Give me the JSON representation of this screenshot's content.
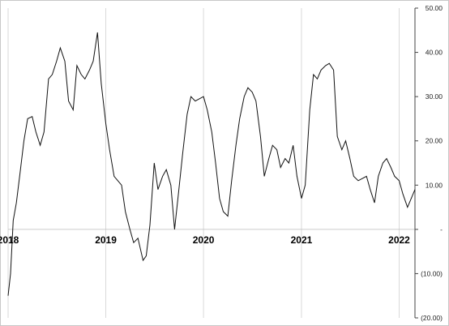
{
  "chart_data": {
    "type": "line",
    "title": "",
    "xlabel": "",
    "ylabel": "",
    "x_tick_labels": [
      "2018",
      "2019",
      "2020",
      "2021",
      "2022"
    ],
    "y_tick_labels": [
      "50.00",
      "40.00",
      "30.00",
      "20.00",
      "10.00",
      "-",
      "(10.00)",
      "(20.00)"
    ],
    "y_tick_values": [
      50,
      40,
      30,
      20,
      10,
      0,
      -10,
      -20
    ],
    "ylim": [
      -20,
      50
    ],
    "xlim": [
      "2018-01-01",
      "2022-03-01"
    ],
    "grid": "vertical",
    "colors": {
      "line": "#111111",
      "grid": "#d9d9d9",
      "zero_line": "#bbbbbb",
      "axis": "#444444"
    },
    "series": [
      {
        "points": [
          [
            "2018-01-01",
            -15
          ],
          [
            "2018-01-10",
            -10
          ],
          [
            "2018-01-20",
            2
          ],
          [
            "2018-02-01",
            6
          ],
          [
            "2018-02-15",
            13
          ],
          [
            "2018-03-01",
            20
          ],
          [
            "2018-03-15",
            25
          ],
          [
            "2018-04-01",
            25.5
          ],
          [
            "2018-04-15",
            22
          ],
          [
            "2018-05-01",
            19
          ],
          [
            "2018-05-15",
            22
          ],
          [
            "2018-06-01",
            34
          ],
          [
            "2018-06-15",
            35
          ],
          [
            "2018-07-01",
            38
          ],
          [
            "2018-07-15",
            41
          ],
          [
            "2018-08-01",
            38
          ],
          [
            "2018-08-15",
            29
          ],
          [
            "2018-09-01",
            27
          ],
          [
            "2018-09-15",
            37
          ],
          [
            "2018-10-01",
            35
          ],
          [
            "2018-10-15",
            34
          ],
          [
            "2018-11-01",
            36
          ],
          [
            "2018-11-15",
            38
          ],
          [
            "2018-12-01",
            44.5
          ],
          [
            "2018-12-15",
            33
          ],
          [
            "2019-01-01",
            24
          ],
          [
            "2019-01-15",
            18
          ],
          [
            "2019-02-01",
            12
          ],
          [
            "2019-03-01",
            10
          ],
          [
            "2019-03-15",
            4
          ],
          [
            "2019-04-01",
            0
          ],
          [
            "2019-04-15",
            -3
          ],
          [
            "2019-05-01",
            -2
          ],
          [
            "2019-05-20",
            -7
          ],
          [
            "2019-06-01",
            -6
          ],
          [
            "2019-06-15",
            1
          ],
          [
            "2019-07-01",
            15
          ],
          [
            "2019-07-15",
            9
          ],
          [
            "2019-08-01",
            12
          ],
          [
            "2019-08-15",
            13.5
          ],
          [
            "2019-09-01",
            10
          ],
          [
            "2019-09-15",
            0
          ],
          [
            "2019-10-01",
            9
          ],
          [
            "2019-10-15",
            17
          ],
          [
            "2019-11-01",
            26
          ],
          [
            "2019-11-15",
            30
          ],
          [
            "2019-12-01",
            29
          ],
          [
            "2020-01-01",
            30
          ],
          [
            "2020-01-15",
            27
          ],
          [
            "2020-02-01",
            22
          ],
          [
            "2020-02-15",
            15
          ],
          [
            "2020-03-01",
            7
          ],
          [
            "2020-03-15",
            4
          ],
          [
            "2020-04-01",
            3
          ],
          [
            "2020-04-15",
            11
          ],
          [
            "2020-05-01",
            19
          ],
          [
            "2020-05-15",
            25
          ],
          [
            "2020-06-01",
            30
          ],
          [
            "2020-06-15",
            32
          ],
          [
            "2020-07-01",
            31
          ],
          [
            "2020-07-15",
            29
          ],
          [
            "2020-08-01",
            21
          ],
          [
            "2020-08-15",
            12
          ],
          [
            "2020-09-01",
            16
          ],
          [
            "2020-09-15",
            19
          ],
          [
            "2020-10-01",
            18
          ],
          [
            "2020-10-15",
            14
          ],
          [
            "2020-11-01",
            16
          ],
          [
            "2020-11-15",
            15
          ],
          [
            "2020-12-01",
            19
          ],
          [
            "2020-12-15",
            12
          ],
          [
            "2021-01-01",
            7
          ],
          [
            "2021-01-15",
            10
          ],
          [
            "2021-02-01",
            27
          ],
          [
            "2021-02-15",
            35
          ],
          [
            "2021-03-01",
            34
          ],
          [
            "2021-03-15",
            36
          ],
          [
            "2021-04-01",
            37
          ],
          [
            "2021-04-15",
            37.5
          ],
          [
            "2021-05-01",
            36
          ],
          [
            "2021-05-15",
            21
          ],
          [
            "2021-06-01",
            18
          ],
          [
            "2021-06-15",
            20
          ],
          [
            "2021-07-01",
            16
          ],
          [
            "2021-07-15",
            12
          ],
          [
            "2021-08-01",
            11
          ],
          [
            "2021-09-01",
            12
          ],
          [
            "2021-09-15",
            9
          ],
          [
            "2021-10-01",
            6
          ],
          [
            "2021-10-15",
            12
          ],
          [
            "2021-11-01",
            15
          ],
          [
            "2021-11-15",
            16
          ],
          [
            "2021-12-01",
            14
          ],
          [
            "2021-12-15",
            12
          ],
          [
            "2022-01-01",
            11
          ],
          [
            "2022-01-15",
            8
          ],
          [
            "2022-02-01",
            5
          ],
          [
            "2022-02-15",
            7
          ],
          [
            "2022-03-01",
            9
          ]
        ]
      }
    ]
  }
}
